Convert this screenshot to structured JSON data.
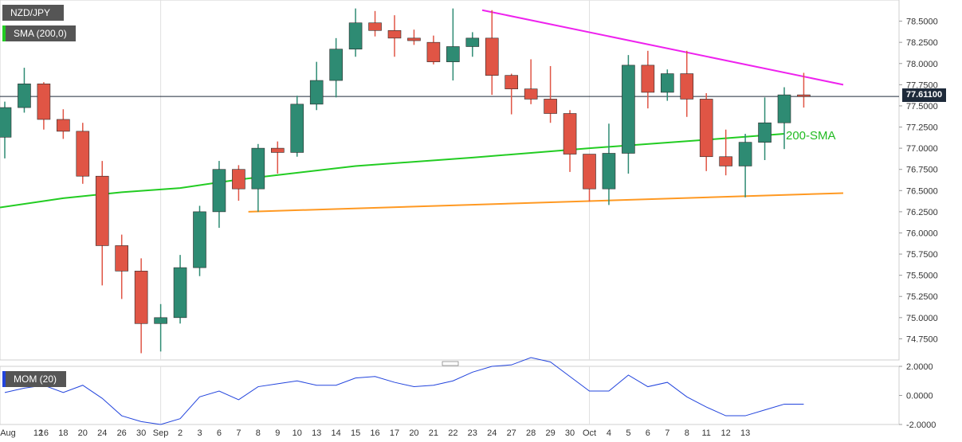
{
  "labels": {
    "ticker": "NZD/JPY",
    "sma": "SMA (200,0)",
    "momentum": "MOM (20)",
    "last_price": "77.61100",
    "sma_annotation": "200-SMA"
  },
  "colors": {
    "bull": "#2e8b73",
    "bear": "#e05545",
    "sma": "#22cc22",
    "resistance": "#ee22ee",
    "support": "#ff9922",
    "momentum": "#2244dd",
    "price_line": "#1e2a3a"
  },
  "chart_data": [
    {
      "type": "candlestick",
      "ylim": [
        74.5,
        78.75
      ],
      "yticks": [
        "78.5000",
        "78.2500",
        "78.0000",
        "77.7500",
        "77.5000",
        "77.2500",
        "77.0000",
        "76.7500",
        "76.5000",
        "76.2500",
        "76.0000",
        "75.7500",
        "75.5000",
        "75.2500",
        "75.0000",
        "74.7500"
      ],
      "x_tick_labels": [
        "Aug",
        "12",
        "16",
        "18",
        "20",
        "24",
        "26",
        "30",
        "Sep",
        "2",
        "3",
        "6",
        "7",
        "8",
        "9",
        "10",
        "13",
        "14",
        "15",
        "16",
        "17",
        "20",
        "21",
        "22",
        "23",
        "24",
        "27",
        "28",
        "29",
        "30",
        "Oct",
        "4",
        "5",
        "6",
        "7",
        "8",
        "11",
        "12",
        "13"
      ],
      "candles": [
        {
          "o": 77.13,
          "h": 77.55,
          "l": 76.88,
          "c": 77.48
        },
        {
          "o": 77.48,
          "h": 77.95,
          "l": 77.42,
          "c": 77.76
        },
        {
          "o": 77.76,
          "h": 77.78,
          "l": 77.22,
          "c": 77.34
        },
        {
          "o": 77.34,
          "h": 77.46,
          "l": 77.11,
          "c": 77.2
        },
        {
          "o": 77.2,
          "h": 77.3,
          "l": 76.58,
          "c": 76.67
        },
        {
          "o": 76.67,
          "h": 76.85,
          "l": 75.38,
          "c": 75.85
        },
        {
          "o": 75.85,
          "h": 75.98,
          "l": 75.22,
          "c": 75.55
        },
        {
          "o": 75.55,
          "h": 75.7,
          "l": 74.58,
          "c": 74.93
        },
        {
          "o": 74.93,
          "h": 75.16,
          "l": 74.6,
          "c": 75.0
        },
        {
          "o": 75.0,
          "h": 75.74,
          "l": 74.93,
          "c": 75.59
        },
        {
          "o": 75.59,
          "h": 76.32,
          "l": 75.49,
          "c": 76.25
        },
        {
          "o": 76.25,
          "h": 76.85,
          "l": 76.06,
          "c": 76.75
        },
        {
          "o": 76.75,
          "h": 76.8,
          "l": 76.38,
          "c": 76.52
        },
        {
          "o": 76.52,
          "h": 77.05,
          "l": 76.25,
          "c": 77.0
        },
        {
          "o": 77.0,
          "h": 77.08,
          "l": 76.7,
          "c": 76.95
        },
        {
          "o": 76.95,
          "h": 77.62,
          "l": 76.9,
          "c": 77.52
        },
        {
          "o": 77.52,
          "h": 78.02,
          "l": 77.45,
          "c": 77.8
        },
        {
          "o": 77.8,
          "h": 78.3,
          "l": 77.6,
          "c": 78.17
        },
        {
          "o": 78.17,
          "h": 78.65,
          "l": 78.08,
          "c": 78.48
        },
        {
          "o": 78.48,
          "h": 78.62,
          "l": 78.32,
          "c": 78.39
        },
        {
          "o": 78.39,
          "h": 78.57,
          "l": 78.08,
          "c": 78.3
        },
        {
          "o": 78.3,
          "h": 78.4,
          "l": 78.22,
          "c": 78.27
        },
        {
          "o": 78.25,
          "h": 78.33,
          "l": 77.99,
          "c": 78.02
        },
        {
          "o": 78.02,
          "h": 78.65,
          "l": 77.8,
          "c": 78.2
        },
        {
          "o": 78.2,
          "h": 78.37,
          "l": 78.08,
          "c": 78.3
        },
        {
          "o": 78.3,
          "h": 78.63,
          "l": 77.63,
          "c": 77.86
        },
        {
          "o": 77.86,
          "h": 77.88,
          "l": 77.4,
          "c": 77.7
        },
        {
          "o": 77.7,
          "h": 78.05,
          "l": 77.52,
          "c": 77.58
        },
        {
          "o": 77.58,
          "h": 77.97,
          "l": 77.3,
          "c": 77.41
        },
        {
          "o": 77.41,
          "h": 77.45,
          "l": 76.72,
          "c": 76.93
        },
        {
          "o": 76.93,
          "h": 76.93,
          "l": 76.37,
          "c": 76.52
        },
        {
          "o": 76.52,
          "h": 77.29,
          "l": 76.33,
          "c": 76.94
        },
        {
          "o": 76.94,
          "h": 78.1,
          "l": 76.7,
          "c": 77.98
        },
        {
          "o": 77.98,
          "h": 78.15,
          "l": 77.47,
          "c": 77.66
        },
        {
          "o": 77.66,
          "h": 77.93,
          "l": 77.56,
          "c": 77.88
        },
        {
          "o": 77.88,
          "h": 78.15,
          "l": 77.37,
          "c": 77.58
        },
        {
          "o": 77.58,
          "h": 77.65,
          "l": 76.73,
          "c": 76.9
        },
        {
          "o": 76.9,
          "h": 77.22,
          "l": 76.68,
          "c": 76.79
        },
        {
          "o": 76.79,
          "h": 77.17,
          "l": 76.42,
          "c": 77.07
        },
        {
          "o": 77.07,
          "h": 77.6,
          "l": 76.86,
          "c": 77.3
        },
        {
          "o": 77.3,
          "h": 77.72,
          "l": 76.99,
          "c": 77.63
        },
        {
          "o": 77.63,
          "h": 77.89,
          "l": 77.48,
          "c": 77.61
        }
      ],
      "last_price": 77.611
    },
    {
      "type": "line",
      "ylim": [
        -2.0,
        2.0
      ],
      "yticks": [
        "2.0000",
        "0.0000",
        "-2.0000"
      ],
      "x_tick_labels": [
        "Aug",
        "12",
        "16",
        "18",
        "20",
        "24",
        "26",
        "30",
        "Sep",
        "2",
        "3",
        "6",
        "7",
        "8",
        "9",
        "10",
        "13",
        "14",
        "15",
        "16",
        "17",
        "20",
        "21",
        "22",
        "23",
        "24",
        "27",
        "28",
        "29",
        "30",
        "Oct",
        "4",
        "5",
        "6",
        "7",
        "8",
        "11",
        "12",
        "13"
      ],
      "values": [
        0.2,
        0.5,
        0.7,
        0.2,
        0.7,
        -0.2,
        -1.4,
        -1.8,
        -2.0,
        -1.6,
        -0.1,
        0.3,
        -0.3,
        0.6,
        0.8,
        1.0,
        0.7,
        0.7,
        1.2,
        1.3,
        0.9,
        0.6,
        0.7,
        1.0,
        1.6,
        2.0,
        2.1,
        2.6,
        2.3,
        1.3,
        0.3,
        0.3,
        1.4,
        0.6,
        0.9,
        -0.1,
        -0.8,
        -1.4,
        -1.4,
        -1.0,
        -0.6,
        -0.6
      ]
    }
  ]
}
